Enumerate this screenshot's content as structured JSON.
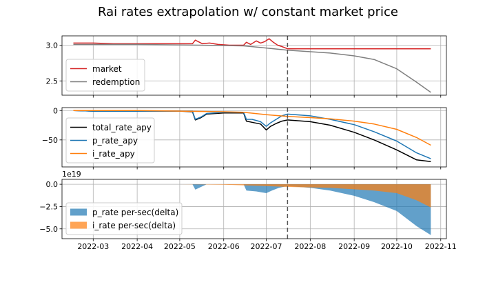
{
  "chart_data": {
    "title": "Rai rates extrapolation w/ constant market price",
    "vline_date": "2022-07-16",
    "x_range": [
      "2022-02-07",
      "2022-11-05"
    ],
    "x_ticks": [
      "2022-03",
      "2022-04",
      "2022-05",
      "2022-06",
      "2022-07",
      "2022-08",
      "2022-09",
      "2022-10",
      "2022-11"
    ],
    "panels": [
      {
        "type": "line",
        "ylim": [
          2.3,
          3.13
        ],
        "y_ticks": [
          3.0,
          2.5
        ],
        "y_tick_labels": [
          "3.0",
          "2.5"
        ],
        "legend_position": "lower-left",
        "series": [
          {
            "name": "market",
            "color": "#d62728",
            "points": [
              [
                "2022-02-15",
                3.03
              ],
              [
                "2022-03-01",
                3.03
              ],
              [
                "2022-03-15",
                3.02
              ],
              [
                "2022-04-01",
                3.02
              ],
              [
                "2022-04-15",
                3.02
              ],
              [
                "2022-05-01",
                3.02
              ],
              [
                "2022-05-10",
                3.02
              ],
              [
                "2022-05-12",
                3.07
              ],
              [
                "2022-05-14",
                3.05
              ],
              [
                "2022-05-17",
                3.02
              ],
              [
                "2022-05-22",
                3.03
              ],
              [
                "2022-05-28",
                3.01
              ],
              [
                "2022-06-05",
                3.0
              ],
              [
                "2022-06-15",
                3.0
              ],
              [
                "2022-06-17",
                3.04
              ],
              [
                "2022-06-20",
                3.01
              ],
              [
                "2022-06-24",
                3.06
              ],
              [
                "2022-06-27",
                3.03
              ],
              [
                "2022-06-30",
                3.05
              ],
              [
                "2022-07-03",
                3.09
              ],
              [
                "2022-07-06",
                3.04
              ],
              [
                "2022-07-09",
                3.0
              ],
              [
                "2022-07-12",
                2.98
              ],
              [
                "2022-07-16",
                2.95
              ],
              [
                "2022-08-15",
                2.95
              ],
              [
                "2022-09-15",
                2.95
              ],
              [
                "2022-10-25",
                2.95
              ]
            ]
          },
          {
            "name": "redemption",
            "color": "#7f7f7f",
            "points": [
              [
                "2022-02-15",
                3.01
              ],
              [
                "2022-04-01",
                3.01
              ],
              [
                "2022-05-15",
                3.0
              ],
              [
                "2022-06-15",
                2.99
              ],
              [
                "2022-07-01",
                2.96
              ],
              [
                "2022-07-16",
                2.93
              ],
              [
                "2022-08-15",
                2.89
              ],
              [
                "2022-09-01",
                2.85
              ],
              [
                "2022-09-15",
                2.8
              ],
              [
                "2022-10-01",
                2.67
              ],
              [
                "2022-10-15",
                2.48
              ],
              [
                "2022-10-25",
                2.34
              ]
            ]
          }
        ]
      },
      {
        "type": "line",
        "ylim": [
          -96,
          5
        ],
        "y_ticks": [
          0,
          -50
        ],
        "y_tick_labels": [
          "0",
          "−50"
        ],
        "legend_position": "lower-left",
        "series": [
          {
            "name": "total_rate_apy",
            "color": "#000000",
            "points": [
              [
                "2022-02-15",
                0
              ],
              [
                "2022-03-01",
                -1
              ],
              [
                "2022-03-15",
                -1
              ],
              [
                "2022-04-01",
                -1
              ],
              [
                "2022-05-01",
                -1
              ],
              [
                "2022-05-10",
                -2
              ],
              [
                "2022-05-12",
                -16
              ],
              [
                "2022-05-16",
                -12
              ],
              [
                "2022-05-20",
                -6
              ],
              [
                "2022-06-01",
                -4
              ],
              [
                "2022-06-15",
                -4
              ],
              [
                "2022-06-17",
                -18
              ],
              [
                "2022-06-21",
                -20
              ],
              [
                "2022-06-27",
                -23
              ],
              [
                "2022-07-01",
                -33
              ],
              [
                "2022-07-04",
                -27
              ],
              [
                "2022-07-08",
                -22
              ],
              [
                "2022-07-12",
                -18
              ],
              [
                "2022-07-16",
                -16
              ],
              [
                "2022-08-01",
                -19
              ],
              [
                "2022-08-15",
                -25
              ],
              [
                "2022-09-01",
                -37
              ],
              [
                "2022-09-15",
                -50
              ],
              [
                "2022-10-01",
                -67
              ],
              [
                "2022-10-15",
                -84
              ],
              [
                "2022-10-25",
                -87
              ]
            ]
          },
          {
            "name": "p_rate_apy",
            "color": "#1f77b4",
            "points": [
              [
                "2022-02-15",
                0
              ],
              [
                "2022-03-01",
                -1
              ],
              [
                "2022-04-01",
                -1
              ],
              [
                "2022-05-01",
                -1
              ],
              [
                "2022-05-10",
                -1
              ],
              [
                "2022-05-12",
                -15
              ],
              [
                "2022-05-16",
                -11
              ],
              [
                "2022-05-20",
                -5
              ],
              [
                "2022-06-01",
                -3
              ],
              [
                "2022-06-15",
                -3
              ],
              [
                "2022-06-17",
                -15
              ],
              [
                "2022-06-21",
                -15
              ],
              [
                "2022-06-27",
                -19
              ],
              [
                "2022-07-01",
                -27
              ],
              [
                "2022-07-04",
                -21
              ],
              [
                "2022-07-08",
                -15
              ],
              [
                "2022-07-12",
                -9
              ],
              [
                "2022-07-16",
                -6
              ],
              [
                "2022-08-01",
                -9
              ],
              [
                "2022-08-15",
                -15
              ],
              [
                "2022-09-01",
                -24
              ],
              [
                "2022-09-15",
                -36
              ],
              [
                "2022-10-01",
                -52
              ],
              [
                "2022-10-15",
                -72
              ],
              [
                "2022-10-25",
                -82
              ]
            ]
          },
          {
            "name": "i_rate_apy",
            "color": "#ff7f0e",
            "points": [
              [
                "2022-02-15",
                0
              ],
              [
                "2022-03-01",
                0
              ],
              [
                "2022-04-01",
                0
              ],
              [
                "2022-05-01",
                -1
              ],
              [
                "2022-06-01",
                -2
              ],
              [
                "2022-06-15",
                -3
              ],
              [
                "2022-07-01",
                -7
              ],
              [
                "2022-07-16",
                -10
              ],
              [
                "2022-08-01",
                -12
              ],
              [
                "2022-08-15",
                -14
              ],
              [
                "2022-09-01",
                -18
              ],
              [
                "2022-09-15",
                -23
              ],
              [
                "2022-10-01",
                -32
              ],
              [
                "2022-10-15",
                -46
              ],
              [
                "2022-10-25",
                -59
              ]
            ]
          }
        ]
      },
      {
        "type": "area",
        "ylim": [
          -6.1,
          0.55
        ],
        "y_ticks": [
          0,
          -2.5,
          -5.0
        ],
        "y_tick_labels": [
          "0.0",
          "−2.5",
          "−5.0"
        ],
        "y_scale_label": "1e19",
        "legend_position": "lower-left",
        "series": [
          {
            "name": "p_rate per-sec(delta)",
            "color": "#1f77b4",
            "points": [
              [
                "2022-02-15",
                0
              ],
              [
                "2022-05-10",
                0
              ],
              [
                "2022-05-12",
                -0.6
              ],
              [
                "2022-05-16",
                -0.3
              ],
              [
                "2022-05-20",
                0
              ],
              [
                "2022-06-15",
                0
              ],
              [
                "2022-06-17",
                -0.7
              ],
              [
                "2022-06-24",
                -0.8
              ],
              [
                "2022-07-01",
                -1.0
              ],
              [
                "2022-07-05",
                -0.7
              ],
              [
                "2022-07-10",
                -0.4
              ],
              [
                "2022-07-16",
                -0.2
              ],
              [
                "2022-08-01",
                -0.4
              ],
              [
                "2022-08-15",
                -0.7
              ],
              [
                "2022-09-01",
                -1.3
              ],
              [
                "2022-09-15",
                -2.0
              ],
              [
                "2022-10-01",
                -3.0
              ],
              [
                "2022-10-15",
                -4.7
              ],
              [
                "2022-10-25",
                -5.7
              ]
            ]
          },
          {
            "name": "i_rate per-sec(delta)",
            "color": "#ff7f0e",
            "points": [
              [
                "2022-02-15",
                0
              ],
              [
                "2022-05-01",
                0
              ],
              [
                "2022-06-01",
                -0.05
              ],
              [
                "2022-07-01",
                -0.2
              ],
              [
                "2022-07-16",
                -0.3
              ],
              [
                "2022-08-15",
                -0.4
              ],
              [
                "2022-09-15",
                -0.7
              ],
              [
                "2022-10-01",
                -1.0
              ],
              [
                "2022-10-15",
                -1.8
              ],
              [
                "2022-10-25",
                -2.6
              ]
            ]
          }
        ]
      }
    ]
  }
}
